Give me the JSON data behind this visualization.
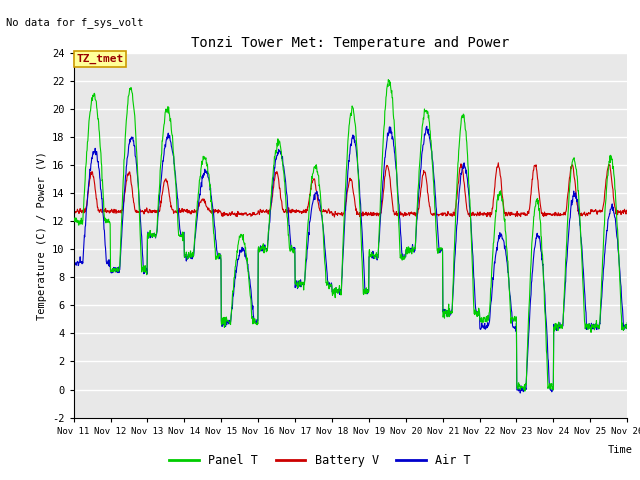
{
  "title": "Tonzi Tower Met: Temperature and Power",
  "no_data_text": "No data for f_sys_volt",
  "label_text": "TZ_tmet",
  "ylabel": "Temperature (C) / Power (V)",
  "xlabel": "Time",
  "ylim": [
    -2,
    24
  ],
  "yticks": [
    -2,
    0,
    2,
    4,
    6,
    8,
    10,
    12,
    14,
    16,
    18,
    20,
    22,
    24
  ],
  "xtick_labels": [
    "Nov 11",
    "Nov 12",
    "Nov 13",
    "Nov 14",
    "Nov 15",
    "Nov 16",
    "Nov 17",
    "Nov 18",
    "Nov 19",
    "Nov 20",
    "Nov 21",
    "Nov 22",
    "Nov 23",
    "Nov 24",
    "Nov 25",
    "Nov 26"
  ],
  "line_colors": {
    "panel_t": "#00CC00",
    "battery_v": "#CC0000",
    "air_t": "#0000CC"
  },
  "bg_color": "#E8E8E8",
  "grid_color": "#FFFFFF",
  "label_box_facecolor": "#FFFF99",
  "label_box_edgecolor": "#CC9900",
  "panel_peaks": [
    21.0,
    21.5,
    20.0,
    16.5,
    11.0,
    17.5,
    16.0,
    20.0,
    22.0,
    20.0,
    19.5,
    14.0,
    13.5,
    16.5,
    16.5
  ],
  "panel_troughs": [
    12.0,
    8.5,
    11.0,
    9.5,
    4.8,
    10.0,
    7.5,
    7.0,
    9.5,
    10.0,
    5.5,
    5.0,
    0.2,
    4.5,
    4.5
  ],
  "battery_peaks": [
    15.5,
    15.5,
    15.0,
    13.5,
    12.5,
    15.5,
    15.0,
    15.0,
    16.0,
    15.5,
    16.0,
    16.0,
    16.0,
    16.0,
    16.0
  ],
  "battery_base": [
    12.7,
    12.7,
    12.7,
    12.7,
    12.5,
    12.7,
    12.7,
    12.5,
    12.5,
    12.5,
    12.5,
    12.5,
    12.5,
    12.5,
    12.7
  ],
  "air_peaks": [
    17.0,
    18.0,
    18.0,
    15.5,
    10.0,
    17.0,
    14.0,
    18.0,
    18.5,
    18.5,
    16.0,
    11.0,
    11.0,
    14.0,
    13.0
  ],
  "air_troughs": [
    9.0,
    8.5,
    11.0,
    9.5,
    4.8,
    10.0,
    7.5,
    7.0,
    9.5,
    10.0,
    5.5,
    4.5,
    0.0,
    4.5,
    4.5
  ],
  "n_days": 15,
  "pts_per_day": 96
}
